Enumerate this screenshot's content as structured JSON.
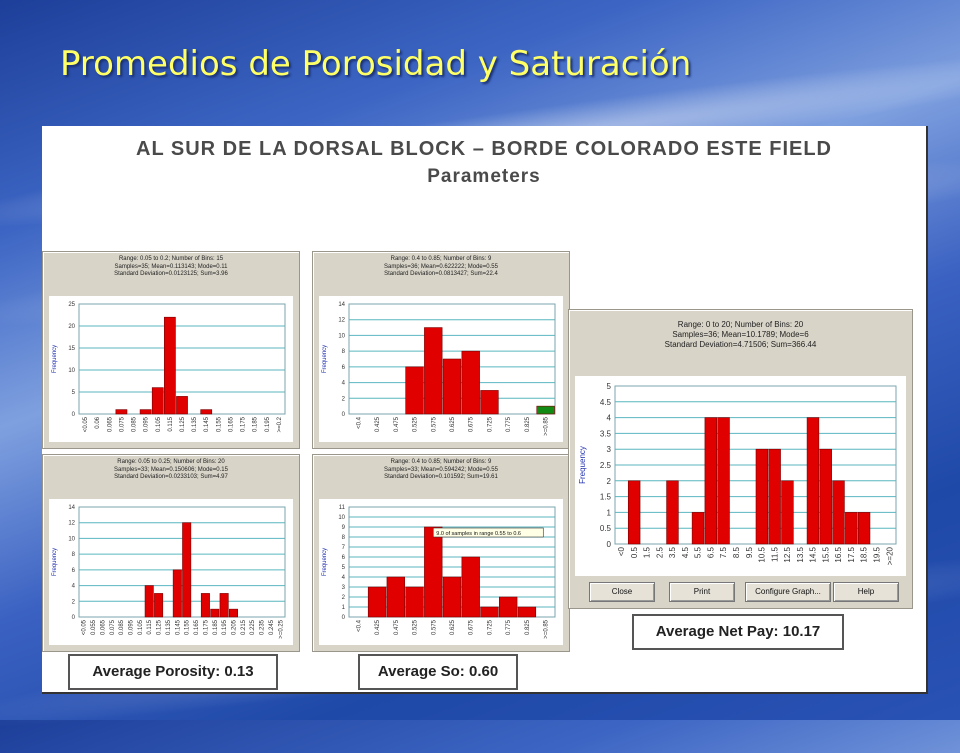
{
  "slide_title": "Promedios de Porosidad y Saturación",
  "figure": {
    "title": "AL SUR DE LA DORSAL BLOCK – BORDE COLORADO ESTE FIELD",
    "subtitle": "Parameters"
  },
  "colors": {
    "bar": "#e00000",
    "bar_last": "#138a13",
    "grid": "#59b6bf",
    "axis_text": "#333333",
    "ylabel": "#2030b0"
  },
  "panels": {
    "porosity_15": {
      "stats": [
        "Range: 0.05 to 0.2; Number of Bins: 15",
        "Samples=35; Mean=0.113143; Mode=0.11",
        "Standard Deviation=0.0123125; Sum=3.96"
      ]
    },
    "so_9a": {
      "stats": [
        "Range: 0.4 to 0.85; Number of Bins: 9",
        "Samples=36; Mean=0.622222; Mode=0.55",
        "Standard Deviation=0.0813427; Sum=22.4"
      ]
    },
    "porosity_20": {
      "stats": [
        "Range: 0.05 to 0.25; Number of Bins: 20",
        "Samples=33; Mean=0.150606; Mode=0.15",
        "Standard Deviation=0.0233103; Sum=4.97"
      ]
    },
    "so_9b": {
      "stats": [
        "Range: 0.4 to 0.85; Number of Bins: 9",
        "Samples=33; Mean=0.594242; Mode=0.55",
        "Standard Deviation=0.101592; Sum=19.61"
      ],
      "tooltip": "9.0 of samples in range 0.55 to 0.6"
    },
    "netpay": {
      "stats": [
        "Range: 0 to 20; Number of Bins: 20",
        "Samples=36; Mean=10.1789; Mode=6",
        "Standard Deviation=4.71506; Sum=366.44"
      ],
      "buttons": [
        "Close",
        "Print",
        "Configure Graph...",
        "Help"
      ]
    }
  },
  "averages": {
    "porosity": "Average Porosity: 0.13",
    "so": "Average So: 0.60",
    "netpay": "Average Net Pay: 10.17"
  },
  "chart_data": [
    {
      "type": "bar",
      "ylabel": "Frequency",
      "categories": [
        "<0.05",
        "0.06",
        "0.065",
        "0.075",
        "0.085",
        "0.095",
        "0.105",
        "0.115",
        "0.125",
        "0.135",
        "0.145",
        "0.155",
        "0.165",
        "0.175",
        "0.185",
        "0.195",
        ">=0.2"
      ],
      "values": [
        0,
        0,
        0,
        1,
        0,
        1,
        6,
        22,
        4,
        0,
        1,
        0,
        0,
        0,
        0,
        0,
        0
      ],
      "ylim": [
        0,
        25
      ],
      "yticks": [
        0,
        5,
        10,
        15,
        20,
        25
      ]
    },
    {
      "type": "bar",
      "ylabel": "Frequency",
      "categories": [
        "<0.4",
        "0.425",
        "0.475",
        "0.525",
        "0.575",
        "0.625",
        "0.675",
        "0.725",
        "0.775",
        "0.825",
        ">=0.85"
      ],
      "values": [
        0,
        0,
        0,
        6,
        11,
        7,
        8,
        3,
        0,
        0,
        1
      ],
      "ylim": [
        0,
        14
      ],
      "yticks": [
        0,
        2,
        4,
        6,
        8,
        10,
        12,
        14
      ]
    },
    {
      "type": "bar",
      "ylabel": "Frequency",
      "categories": [
        "<0.05",
        "0.055",
        "0.065",
        "0.075",
        "0.085",
        "0.095",
        "0.105",
        "0.115",
        "0.125",
        "0.135",
        "0.145",
        "0.155",
        "0.165",
        "0.175",
        "0.185",
        "0.195",
        "0.205",
        "0.215",
        "0.225",
        "0.235",
        "0.245",
        ">=0.25"
      ],
      "values": [
        0,
        0,
        0,
        0,
        0,
        0,
        0,
        4,
        3,
        0,
        6,
        12,
        0,
        3,
        1,
        3,
        1,
        0,
        0,
        0,
        0,
        0
      ],
      "ylim": [
        0,
        14
      ],
      "yticks": [
        0,
        2,
        4,
        6,
        8,
        10,
        12,
        14
      ]
    },
    {
      "type": "bar",
      "ylabel": "Frequency",
      "categories": [
        "<0.4",
        "0.425",
        "0.475",
        "0.525",
        "0.575",
        "0.625",
        "0.675",
        "0.725",
        "0.775",
        "0.825",
        ">=0.85"
      ],
      "values": [
        0,
        3,
        4,
        3,
        9,
        4,
        6,
        1,
        2,
        1,
        0
      ],
      "ylim": [
        0,
        11
      ],
      "yticks": [
        0,
        1,
        2,
        3,
        4,
        5,
        6,
        7,
        8,
        9,
        10,
        11
      ]
    },
    {
      "type": "bar",
      "ylabel": "Frequency",
      "categories": [
        "<0",
        "0.5",
        "1.5",
        "2.5",
        "3.5",
        "4.5",
        "5.5",
        "6.5",
        "7.5",
        "8.5",
        "9.5",
        "10.5",
        "11.5",
        "12.5",
        "13.5",
        "14.5",
        "15.5",
        "16.5",
        "17.5",
        "18.5",
        "19.5",
        ">=20"
      ],
      "values": [
        0,
        2,
        0,
        0,
        2,
        0,
        1,
        4,
        4,
        0,
        0,
        3,
        3,
        2,
        0,
        4,
        3,
        2,
        1,
        1,
        0,
        0
      ],
      "ylim": [
        0,
        5
      ],
      "yticks": [
        0,
        0.5,
        1,
        1.5,
        2,
        2.5,
        3,
        3.5,
        4,
        4.5,
        5
      ]
    }
  ]
}
